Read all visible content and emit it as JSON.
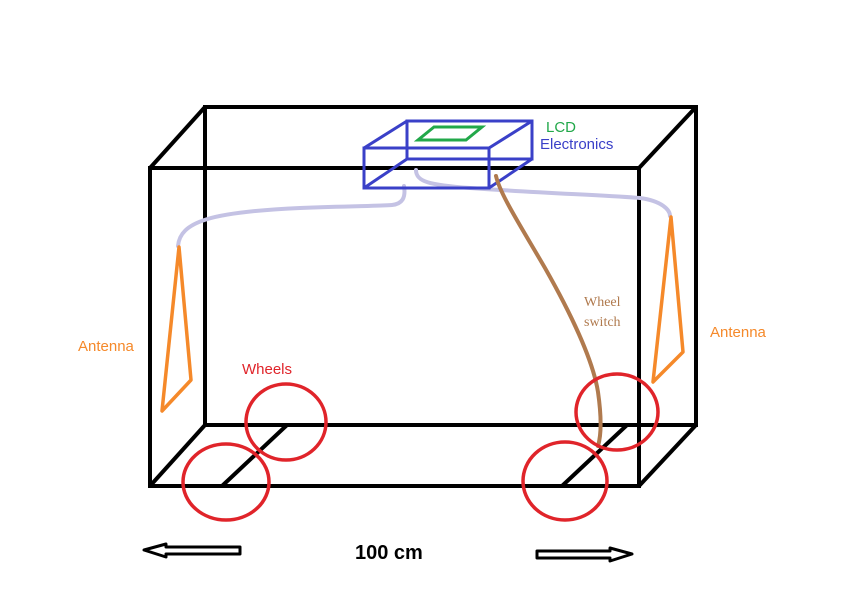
{
  "labels": {
    "lcd": "LCD",
    "electronics": "Electronics",
    "antenna_left": "Antenna",
    "antenna_right": "Antenna",
    "wheels": "Wheels",
    "wheel_switch_line1": "Wheel",
    "wheel_switch_line2": "switch",
    "dimension": "100 cm"
  },
  "colors": {
    "box": "#000000",
    "electronics": "#3a40c8",
    "lcd": "#22a84a",
    "antenna": "#f5892a",
    "wheels": "#e0242a",
    "cable": "#c4c2e4",
    "wheel_switch_wire": "#b07a4e",
    "arrow": "#000000"
  }
}
